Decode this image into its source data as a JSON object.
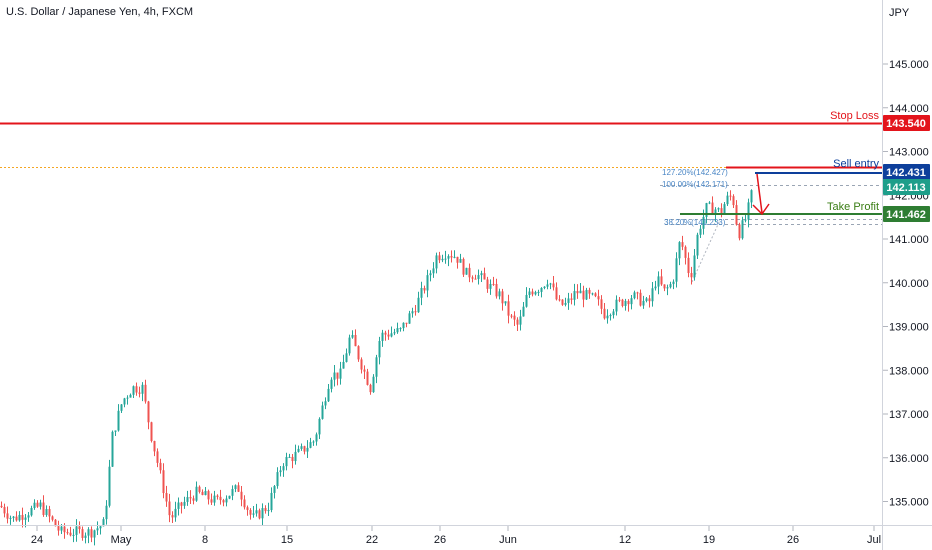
{
  "header": {
    "title": "U.S. Dollar / Japanese Yen, 4h, FXCM",
    "currency": "JPY"
  },
  "colors": {
    "up": "#26a69a",
    "down": "#ef5350",
    "stop": "#e3141b",
    "entry": "#0d3f9b",
    "tp": "#2e7d32",
    "tp_label": "#3a7d14",
    "current": "#1e9e8a",
    "fib": "#4a86c5",
    "orange": "#f5a623"
  },
  "chart_data": {
    "type": "candlestick",
    "y_ticks": [
      "135.000",
      "136.000",
      "137.000",
      "138.000",
      "139.000",
      "140.000",
      "141.000",
      "142.000",
      "143.000",
      "144.000",
      "145.000"
    ],
    "ylim": [
      134.3,
      146.3
    ],
    "x_ticks": [
      {
        "label": "24",
        "x": 0
      },
      {
        "label": "May",
        "x": 1
      },
      {
        "label": "8",
        "x": 2
      },
      {
        "label": "15",
        "x": 3
      },
      {
        "label": "22",
        "x": 4
      },
      {
        "label": "26",
        "x": 5
      },
      {
        "label": "Jun",
        "x": 6
      },
      {
        "label": "12",
        "x": 7
      },
      {
        "label": "19",
        "x": 8
      },
      {
        "label": "26",
        "x": 9
      },
      {
        "label": "Jul",
        "x": 10
      }
    ],
    "series": [
      {
        "name": "Stop Loss",
        "value": 143.54,
        "label": "143.540"
      },
      {
        "name": "Sell entry",
        "value": 142.431,
        "label": "142.431"
      },
      {
        "name": "Take Profit",
        "value": 141.462,
        "label": "141.462"
      },
      {
        "name": "current",
        "value": 142.113,
        "label": "142.113"
      }
    ],
    "annotations": [
      "127.20%(142.427)",
      "100.00%(142.171)",
      "38.20%(141.233)"
    ],
    "anchors": [
      [
        0,
        134.9
      ],
      [
        12,
        134.6
      ],
      [
        40,
        134.9
      ],
      [
        60,
        134.3
      ],
      [
        90,
        134.3
      ],
      [
        104,
        134.5
      ],
      [
        112,
        136.5
      ],
      [
        122,
        137.3
      ],
      [
        132,
        137.6
      ],
      [
        142,
        137.6
      ],
      [
        150,
        136.6
      ],
      [
        160,
        135.6
      ],
      [
        170,
        134.6
      ],
      [
        180,
        134.9
      ],
      [
        196,
        135.2
      ],
      [
        216,
        135.0
      ],
      [
        238,
        135.3
      ],
      [
        252,
        134.6
      ],
      [
        268,
        134.9
      ],
      [
        282,
        135.9
      ],
      [
        298,
        136.1
      ],
      [
        314,
        136.4
      ],
      [
        330,
        137.9
      ],
      [
        340,
        137.9
      ],
      [
        350,
        138.8
      ],
      [
        360,
        138.2
      ],
      [
        370,
        137.6
      ],
      [
        380,
        138.8
      ],
      [
        400,
        138.9
      ],
      [
        416,
        139.5
      ],
      [
        426,
        140.0
      ],
      [
        436,
        140.6
      ],
      [
        446,
        140.7
      ],
      [
        456,
        140.6
      ],
      [
        466,
        140.2
      ],
      [
        476,
        140.2
      ],
      [
        490,
        139.9
      ],
      [
        500,
        139.7
      ],
      [
        510,
        139.2
      ],
      [
        518,
        139.0
      ],
      [
        528,
        139.8
      ],
      [
        540,
        139.9
      ],
      [
        548,
        140.1
      ],
      [
        558,
        139.5
      ],
      [
        566,
        139.5
      ],
      [
        576,
        139.8
      ],
      [
        586,
        139.7
      ],
      [
        596,
        139.6
      ],
      [
        604,
        139.3
      ],
      [
        616,
        139.5
      ],
      [
        632,
        139.7
      ],
      [
        648,
        139.5
      ],
      [
        656,
        140.1
      ],
      [
        664,
        139.8
      ],
      [
        672,
        140.0
      ],
      [
        680,
        141.0
      ],
      [
        690,
        140.1
      ],
      [
        698,
        141.2
      ],
      [
        706,
        141.7
      ],
      [
        714,
        141.7
      ],
      [
        720,
        141.6
      ],
      [
        726,
        141.9
      ],
      [
        732,
        142.0
      ],
      [
        738,
        141.1
      ],
      [
        746,
        141.5
      ],
      [
        752,
        142.1
      ]
    ]
  }
}
